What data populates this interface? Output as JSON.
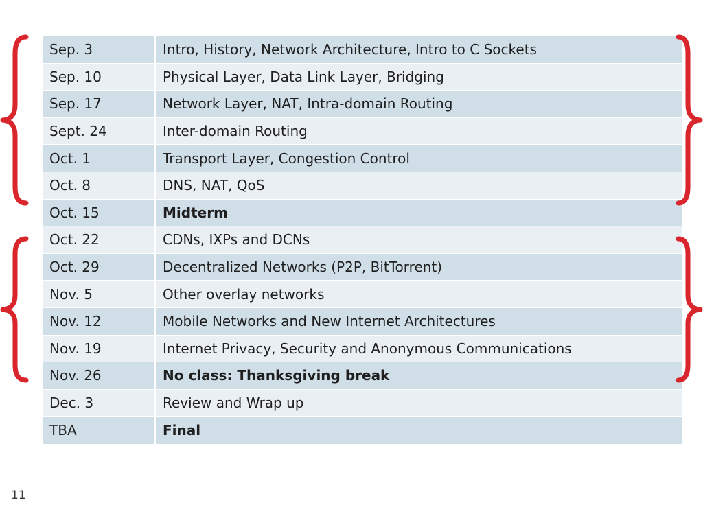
{
  "schedule": {
    "rows": [
      {
        "date": "Sep. 3",
        "topic": "Intro, History, Network Architecture, Intro to C Sockets",
        "bold": false
      },
      {
        "date": "Sep. 10",
        "topic": "Physical Layer, Data Link Layer, Bridging",
        "bold": false
      },
      {
        "date": "Sep. 17",
        "topic": "Network Layer, NAT, Intra-domain Routing",
        "bold": false
      },
      {
        "date": "Sept. 24",
        "topic": "Inter-domain Routing",
        "bold": false
      },
      {
        "date": "Oct. 1",
        "topic": "Transport Layer, Congestion Control",
        "bold": false
      },
      {
        "date": "Oct. 8",
        "topic": "DNS, NAT, QoS",
        "bold": false
      },
      {
        "date": "Oct. 15",
        "topic": "Midterm",
        "bold": true
      },
      {
        "date": "Oct. 22",
        "topic": "CDNs, IXPs and DCNs",
        "bold": false
      },
      {
        "date": "Oct. 29",
        "topic": "Decentralized Networks (P2P, BitTorrent)",
        "bold": false
      },
      {
        "date": "Nov. 5",
        "topic": "Other overlay networks",
        "bold": false
      },
      {
        "date": "Nov. 12",
        "topic": "Mobile Networks and New Internet Architectures",
        "bold": false
      },
      {
        "date": "Nov. 19",
        "topic": "Internet Privacy, Security and Anonymous Communications",
        "bold": false
      },
      {
        "date": "Nov. 26",
        "topic": "No class: Thanksgiving break",
        "bold": true
      },
      {
        "date": "Dec. 3",
        "topic": "Review and Wrap up",
        "bold": false
      },
      {
        "date": "TBA",
        "topic": "Final",
        "bold": true
      }
    ]
  },
  "slide": {
    "page_number": "11"
  },
  "colors": {
    "brace": "#d9262c",
    "row_dark": "#d0dee8",
    "row_light": "#e9eff3"
  }
}
